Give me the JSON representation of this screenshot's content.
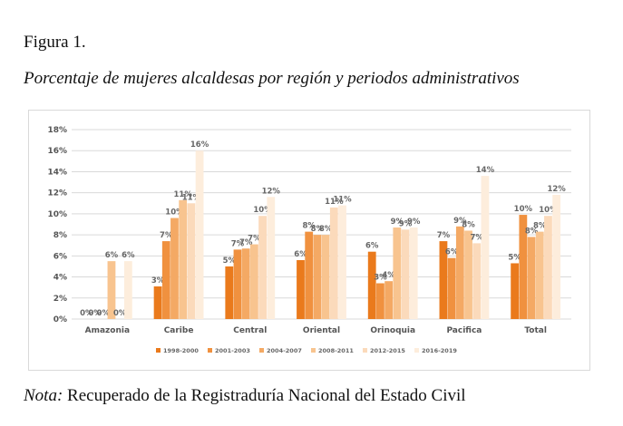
{
  "figure": {
    "label": "Figura 1.",
    "title": "Porcentaje de mujeres alcaldesas por región y periodos administrativos",
    "note_prefix": "Nota:",
    "note_text": " Recuperado de la Registraduría Nacional del Estado Civil"
  },
  "chart_data": {
    "type": "bar",
    "title": "",
    "xlabel": "",
    "ylabel": "",
    "ylim": [
      0,
      18
    ],
    "y_ticks": [
      0,
      2,
      4,
      6,
      8,
      10,
      12,
      14,
      16,
      18
    ],
    "y_tick_labels": [
      "0%",
      "2%",
      "4%",
      "6%",
      "8%",
      "10%",
      "12%",
      "14%",
      "16%",
      "18%"
    ],
    "grid": true,
    "legend_position": "bottom",
    "categories": [
      "Amazonia",
      "Caribe",
      "Central",
      "Oriental",
      "Orinoquia",
      "Pacifica",
      "Total"
    ],
    "series": [
      {
        "name": "1998-2000",
        "color": "#ea7a1c",
        "values": [
          0,
          3.1,
          5.0,
          5.6,
          6.4,
          7.4,
          5.3
        ],
        "labels": [
          "0%",
          "3%",
          "5%",
          "6%",
          "6%",
          "7%",
          "5%"
        ]
      },
      {
        "name": "2001-2003",
        "color": "#f0913f",
        "values": [
          0,
          7.4,
          6.6,
          8.3,
          3.4,
          5.8,
          9.9
        ],
        "labels": [
          "0%",
          "7%",
          "7%",
          "8%",
          "3%",
          "6%",
          "10%"
        ]
      },
      {
        "name": "2004-2007",
        "color": "#f4a964",
        "values": [
          0,
          9.6,
          6.7,
          8.0,
          3.6,
          8.8,
          7.8
        ],
        "labels": [
          "0%",
          "10%",
          "7%",
          "8%",
          "4%",
          "9%",
          "8%"
        ]
      },
      {
        "name": "2008-2011",
        "color": "#f8c48f",
        "values": [
          5.5,
          11.3,
          7.1,
          8.0,
          8.7,
          8.4,
          8.3
        ],
        "labels": [
          "6%",
          "11%",
          "7%",
          "8%",
          "9%",
          "8%",
          "8%"
        ]
      },
      {
        "name": "2012-2015",
        "color": "#fbdabb",
        "values": [
          0,
          11.0,
          9.8,
          10.6,
          8.5,
          7.2,
          9.8
        ],
        "labels": [
          "0%",
          "11%",
          "10%",
          "11%",
          "9%",
          "7%",
          "10%"
        ]
      },
      {
        "name": "2016-2019",
        "color": "#fdeddc",
        "values": [
          5.5,
          16.0,
          11.6,
          10.8,
          8.7,
          13.6,
          11.8
        ],
        "labels": [
          "6%",
          "16%",
          "12%",
          "11%",
          "9%",
          "14%",
          "12%"
        ]
      }
    ]
  }
}
